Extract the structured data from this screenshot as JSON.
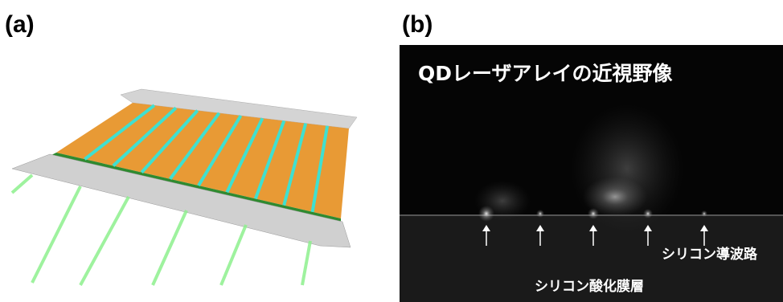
{
  "panels": [
    {
      "label": "(a)"
    },
    {
      "label": "(b)",
      "title": "QDレーザアレイの近視野像",
      "annotations": [
        "シリコン導波路",
        "シリコン酸化膜層"
      ]
    }
  ]
}
